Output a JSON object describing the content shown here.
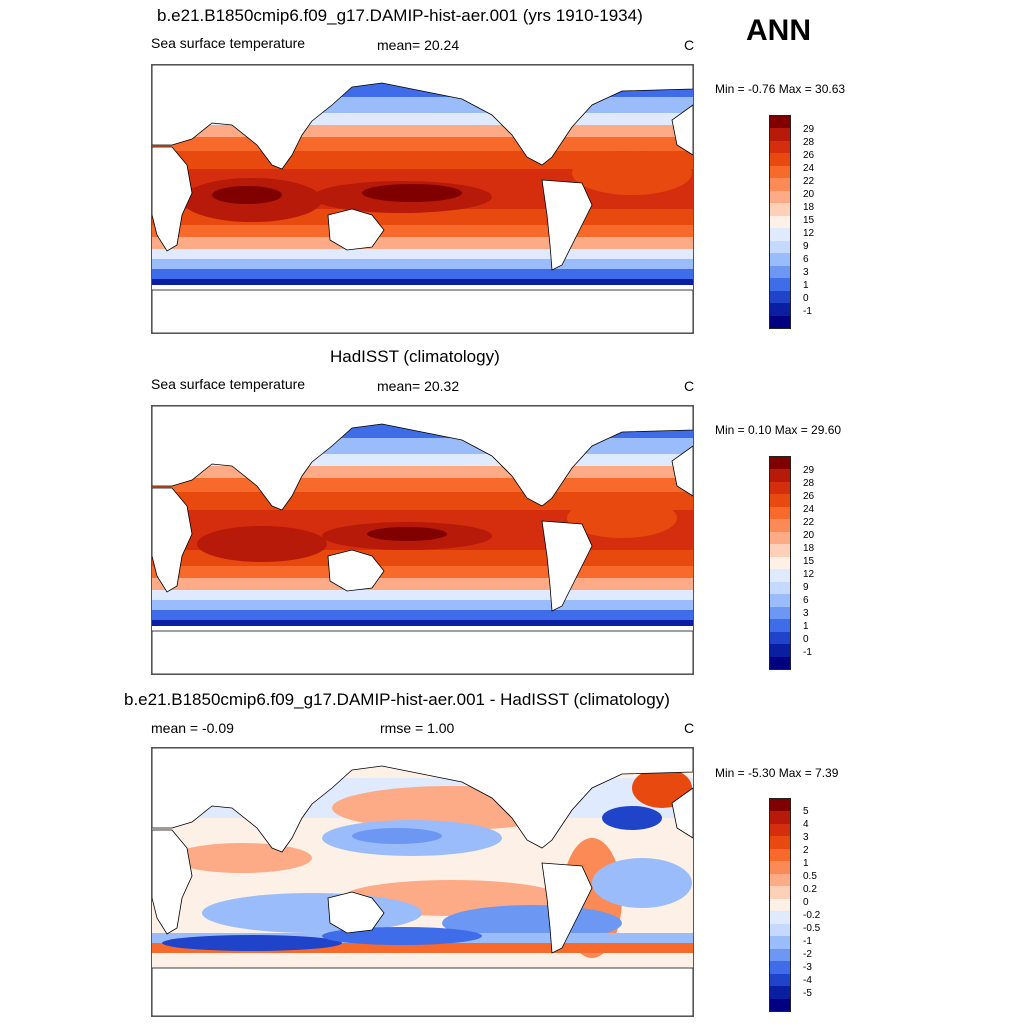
{
  "season_label": "ANN",
  "panels": [
    {
      "title": "b.e21.B1850cmip6.f09_g17.DAMIP-hist-aer.001 (yrs 1910-1934)",
      "left_label": "Sea surface temperature",
      "center_label": "mean=  20.24",
      "right_label": "C",
      "minmax": "Min =  -0.76 Max =  30.63",
      "colorbar": {
        "labels": [
          "29",
          "28",
          "26",
          "24",
          "22",
          "20",
          "18",
          "15",
          "12",
          "9",
          "6",
          "3",
          "1",
          "0",
          "-1"
        ],
        "colors": [
          "#800000",
          "#b71a08",
          "#d42e0e",
          "#e8490f",
          "#f86a2c",
          "#fb8a56",
          "#fdab86",
          "#fed0b8",
          "#fdf0e6",
          "#dfeafe",
          "#c4d9fd",
          "#9bbcfa",
          "#6c98f3",
          "#3f6ce8",
          "#1f43c9",
          "#0a1ea1",
          "#000080"
        ]
      },
      "map_type": "sst"
    },
    {
      "title": "HadISST (climatology)",
      "left_label": "Sea surface temperature",
      "center_label": "mean=  20.32",
      "right_label": "C",
      "minmax": "Min =   0.10 Max =  29.60",
      "colorbar": {
        "labels": [
          "29",
          "28",
          "26",
          "24",
          "22",
          "20",
          "18",
          "15",
          "12",
          "9",
          "6",
          "3",
          "1",
          "0",
          "-1"
        ],
        "colors": [
          "#800000",
          "#b71a08",
          "#d42e0e",
          "#e8490f",
          "#f86a2c",
          "#fb8a56",
          "#fdab86",
          "#fed0b8",
          "#fdf0e6",
          "#dfeafe",
          "#c4d9fd",
          "#9bbcfa",
          "#6c98f3",
          "#3f6ce8",
          "#1f43c9",
          "#0a1ea1",
          "#000080"
        ]
      },
      "map_type": "sst"
    },
    {
      "title": "b.e21.B1850cmip6.f09_g17.DAMIP-hist-aer.001 - HadISST (climatology)",
      "left_label": "mean =  -0.09",
      "center_label": "rmse =   1.00",
      "right_label": "C",
      "minmax": "Min =  -5.30 Max =   7.39",
      "colorbar": {
        "labels": [
          "5",
          "4",
          "3",
          "2",
          "1",
          "0.5",
          "0.2",
          "0",
          "-0.2",
          "-0.5",
          "-1",
          "-2",
          "-3",
          "-4",
          "-5"
        ],
        "colors": [
          "#800000",
          "#b71a08",
          "#d42e0e",
          "#e8490f",
          "#f86a2c",
          "#fb8a56",
          "#fdab86",
          "#fed0b8",
          "#fdf0e6",
          "#dfeafe",
          "#c4d9fd",
          "#9bbcfa",
          "#6c98f3",
          "#3f6ce8",
          "#1f43c9",
          "#0a1ea1",
          "#000080"
        ]
      },
      "map_type": "diff"
    }
  ]
}
